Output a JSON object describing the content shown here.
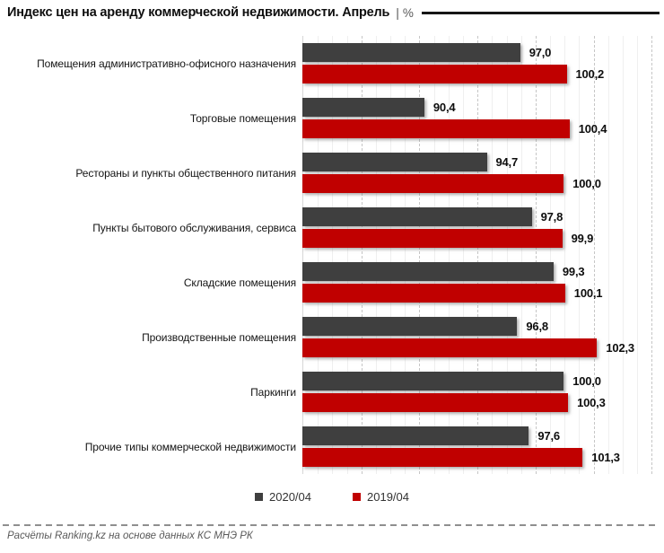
{
  "title": {
    "text": "Индекс цен на аренду коммерческой недвижимости. Апрель",
    "separator": "|",
    "unit": "%"
  },
  "legend": [
    {
      "label": "2020/04",
      "color": "#3f3f3f"
    },
    {
      "label": "2019/04",
      "color": "#c00000"
    }
  ],
  "rows": [
    {
      "label": "Помещения административно-офисного назначения",
      "values": [
        "97,0",
        "100,2"
      ]
    },
    {
      "label": "Торговые помещения",
      "values": [
        "90,4",
        "100,4"
      ]
    },
    {
      "label": "Рестораны и пункты общественного питания",
      "values": [
        "94,7",
        "100,0"
      ]
    },
    {
      "label": "Пункты бытового обслуживания, сервиса",
      "values": [
        "97,8",
        "99,9"
      ]
    },
    {
      "label": "Складские помещения",
      "values": [
        "99,3",
        "100,1"
      ]
    },
    {
      "label": "Производственные помещения",
      "values": [
        "96,8",
        "102,3"
      ]
    },
    {
      "label": "Паркинги",
      "values": [
        "100,0",
        "100,3"
      ]
    },
    {
      "label": "Прочие типы коммерческой недвижимости",
      "values": [
        "97,6",
        "101,3"
      ]
    }
  ],
  "footer": {
    "source": "Расчёты Ranking.kz на основе данных КС МНЭ РК"
  },
  "chart_data": {
    "type": "bar",
    "orientation": "horizontal",
    "title": "Индекс цен на аренду коммерческой недвижимости. Апрель | %",
    "categories": [
      "Помещения административно-офисного назначения",
      "Торговые помещения",
      "Рестораны и пункты общественного питания",
      "Пункты бытового обслуживания, сервиса",
      "Складские помещения",
      "Производственные помещения",
      "Паркинги",
      "Прочие типы коммерческой недвижимости"
    ],
    "series": [
      {
        "name": "2020/04",
        "color": "#3f3f3f",
        "values": [
          97.0,
          90.4,
          94.7,
          97.8,
          99.3,
          96.8,
          100.0,
          97.6
        ]
      },
      {
        "name": "2019/04",
        "color": "#c00000",
        "values": [
          100.2,
          100.4,
          100.0,
          99.9,
          100.1,
          102.3,
          100.3,
          101.3
        ]
      }
    ],
    "xlim": [
      82,
      106.6
    ],
    "gridlines": {
      "minor_step": 1,
      "major_step": 4,
      "major_start": 86,
      "minor_on": true
    },
    "legend_position": "bottom",
    "value_label_format": "comma-decimal"
  }
}
